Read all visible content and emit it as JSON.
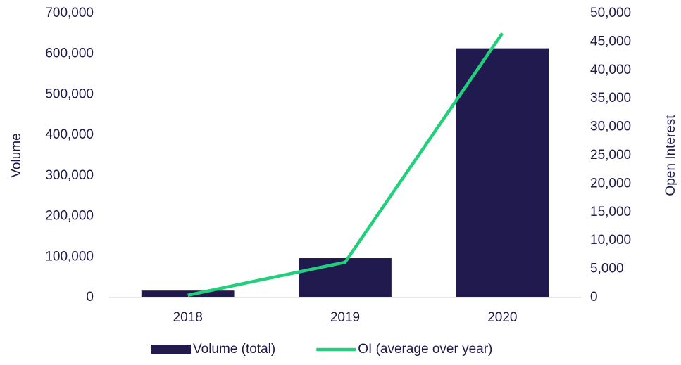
{
  "chart_data": {
    "type": "bar_line",
    "categories": [
      "2018",
      "2019",
      "2020"
    ],
    "series": [
      {
        "name": "Volume (total)",
        "color": "#211a4e",
        "type": "bar",
        "values": [
          17000,
          97000,
          614000
        ]
      },
      {
        "name": "OI (average over year)",
        "color": "#22d07c",
        "type": "line",
        "axis": "y2",
        "values": [
          400,
          6200,
          46500
        ]
      }
    ],
    "ylabel": "Volume",
    "y2label": "Open Interest",
    "ylim": [
      0,
      700000
    ],
    "yticks": [
      0,
      {
        "value": 100000,
        "label": "100,000"
      },
      {
        "value": 200000,
        "label": "200,000"
      },
      {
        "value": 300000,
        "label": "300,000"
      },
      {
        "value": 400000,
        "label": "400,000"
      },
      {
        "value": 500000,
        "label": "500,000"
      },
      {
        "value": 600000,
        "label": "600,000"
      },
      {
        "value": 700000,
        "label": "700,000"
      }
    ],
    "y2lim": [
      0,
      50000
    ],
    "y2ticks": [
      0,
      {
        "value": 5000,
        "label": "5,000"
      },
      {
        "value": 10000,
        "label": "10,000"
      },
      {
        "value": 15000,
        "label": "15,000"
      },
      {
        "value": 20000,
        "label": "20,000"
      },
      {
        "value": 25000,
        "label": "25,000"
      },
      {
        "value": 30000,
        "label": "30,000"
      },
      {
        "value": 35000,
        "label": "35,000"
      },
      {
        "value": 40000,
        "label": "40,000"
      },
      {
        "value": 45000,
        "label": "45,000"
      },
      {
        "value": 50000,
        "label": "50,000"
      }
    ],
    "grid": false,
    "legend": "bottom"
  }
}
